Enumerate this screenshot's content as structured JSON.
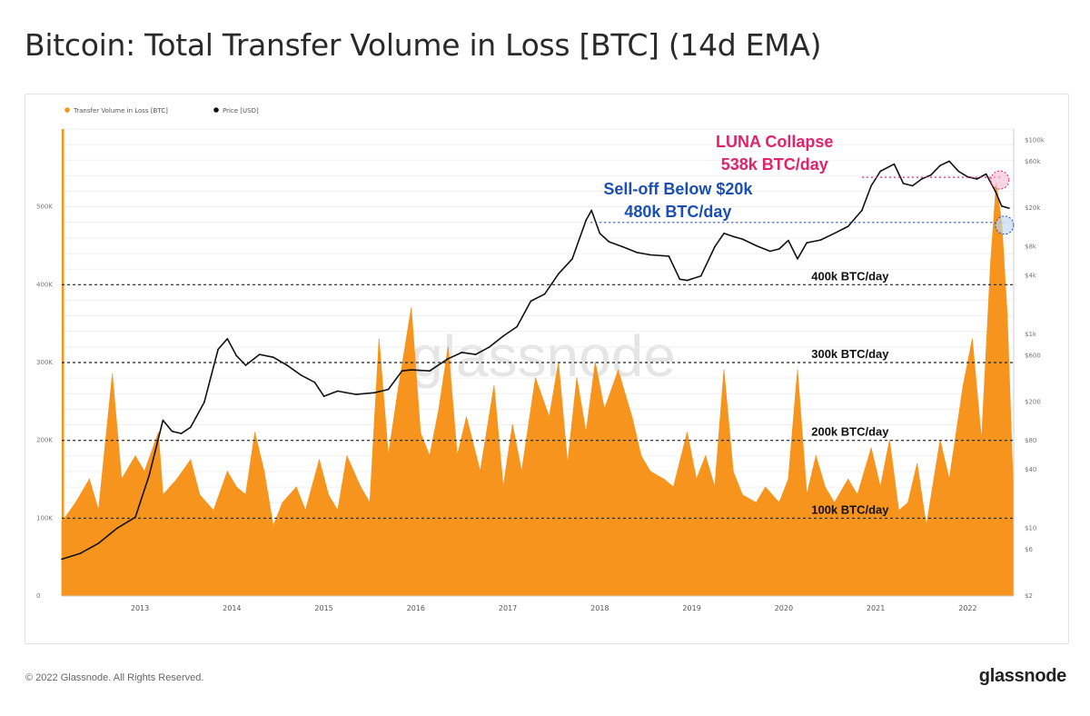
{
  "page": {
    "title": "Bitcoin: Total Transfer Volume in Loss [BTC] (14d EMA)",
    "copyright": "© 2022 Glassnode. All Rights Reserved.",
    "brand": "glassnode",
    "watermark": "glassnode"
  },
  "colors": {
    "volume": "#f7941d",
    "price": "#111111",
    "luna": "#e0236a",
    "selloff": "#1b4fb5",
    "reference_line": "#222222"
  },
  "chart_data": {
    "type": "area",
    "title": "Bitcoin: Total Transfer Volume in Loss [BTC] (14d EMA)",
    "grid": true,
    "legend_position": "top-left",
    "legend": [
      {
        "label": "Transfer Volume in Loss [BTC]",
        "color": "#f7941d"
      },
      {
        "label": "Price [USD]",
        "color": "#111111"
      }
    ],
    "x_ticks": [
      "2013",
      "2014",
      "2015",
      "2016",
      "2017",
      "2018",
      "2019",
      "2020",
      "2021",
      "2022"
    ],
    "xlim": [
      2012.2,
      2022.55
    ],
    "y_left": {
      "ylim": [
        0,
        600000
      ],
      "ticks": [
        0,
        100000,
        200000,
        300000,
        400000,
        500000
      ],
      "tick_labels": [
        "0",
        "100K",
        "200K",
        "300K",
        "400K",
        "500K"
      ]
    },
    "y_right": {
      "scale": "log",
      "ylim": [
        2,
        131000
      ],
      "ticks": [
        2,
        6,
        10,
        40,
        80,
        200,
        600,
        1000,
        4000,
        8000,
        20000,
        60000,
        100000
      ],
      "tick_labels": [
        "$2",
        "$6",
        "$10",
        "$40",
        "$80",
        "$200",
        "$600",
        "$1k",
        "$4k",
        "$8k",
        "$20k",
        "$60k",
        "$100k"
      ]
    },
    "reference_lines": [
      {
        "y": 100000,
        "label": "100k BTC/day"
      },
      {
        "y": 200000,
        "label": "200k BTC/day"
      },
      {
        "y": 300000,
        "label": "300k BTC/day"
      },
      {
        "y": 400000,
        "label": "400k BTC/day"
      }
    ],
    "annotations": [
      {
        "lines": [
          "LUNA Collapse",
          "538k BTC/day"
        ],
        "y": 538000,
        "x": 2022.4,
        "color": "#e0236a"
      },
      {
        "lines": [
          "Sell-off Below $20k",
          "480k BTC/day"
        ],
        "y": 480000,
        "x": 2022.45,
        "color": "#1b4fb5"
      }
    ],
    "series": [
      {
        "name": "Transfer Volume in Loss [BTC]",
        "axis": "left",
        "x": [
          2012.2,
          2012.35,
          2012.5,
          2012.6,
          2012.75,
          2012.85,
          2013.0,
          2013.1,
          2013.25,
          2013.3,
          2013.45,
          2013.6,
          2013.7,
          2013.85,
          2014.0,
          2014.1,
          2014.2,
          2014.3,
          2014.4,
          2014.5,
          2014.6,
          2014.75,
          2014.85,
          2015.0,
          2015.1,
          2015.2,
          2015.3,
          2015.45,
          2015.55,
          2015.65,
          2015.75,
          2015.85,
          2016.0,
          2016.1,
          2016.2,
          2016.3,
          2016.4,
          2016.5,
          2016.6,
          2016.75,
          2016.9,
          2017.0,
          2017.1,
          2017.2,
          2017.35,
          2017.5,
          2017.6,
          2017.7,
          2017.8,
          2017.9,
          2018.0,
          2018.1,
          2018.25,
          2018.4,
          2018.5,
          2018.6,
          2018.75,
          2018.85,
          2019.0,
          2019.1,
          2019.2,
          2019.3,
          2019.4,
          2019.5,
          2019.6,
          2019.75,
          2019.85,
          2020.0,
          2020.1,
          2020.2,
          2020.3,
          2020.4,
          2020.5,
          2020.6,
          2020.75,
          2020.85,
          2021.0,
          2021.1,
          2021.2,
          2021.3,
          2021.4,
          2021.5,
          2021.6,
          2021.75,
          2021.85,
          2022.0,
          2022.1,
          2022.2,
          2022.3,
          2022.36,
          2022.42,
          2022.48,
          2022.55
        ],
        "values": [
          95000,
          120000,
          150000,
          110000,
          285000,
          150000,
          180000,
          160000,
          210000,
          130000,
          150000,
          175000,
          130000,
          110000,
          160000,
          140000,
          130000,
          210000,
          160000,
          90000,
          120000,
          140000,
          110000,
          175000,
          130000,
          110000,
          180000,
          140000,
          120000,
          330000,
          180000,
          260000,
          370000,
          210000,
          180000,
          240000,
          320000,
          180000,
          230000,
          160000,
          270000,
          140000,
          220000,
          160000,
          280000,
          230000,
          300000,
          170000,
          280000,
          210000,
          300000,
          240000,
          290000,
          230000,
          180000,
          160000,
          150000,
          140000,
          210000,
          150000,
          180000,
          140000,
          290000,
          160000,
          130000,
          120000,
          140000,
          120000,
          150000,
          290000,
          130000,
          180000,
          140000,
          120000,
          150000,
          130000,
          190000,
          140000,
          200000,
          110000,
          120000,
          170000,
          90000,
          200000,
          150000,
          270000,
          330000,
          200000,
          430000,
          530000,
          480000,
          360000,
          120000
        ]
      },
      {
        "name": "Price [USD]",
        "axis": "right",
        "x": [
          2012.2,
          2012.4,
          2012.6,
          2012.8,
          2013.0,
          2013.15,
          2013.3,
          2013.4,
          2013.5,
          2013.6,
          2013.75,
          2013.9,
          2014.0,
          2014.1,
          2014.2,
          2014.35,
          2014.5,
          2014.65,
          2014.8,
          2014.95,
          2015.05,
          2015.2,
          2015.4,
          2015.6,
          2015.75,
          2015.9,
          2016.0,
          2016.2,
          2016.4,
          2016.55,
          2016.7,
          2016.85,
          2017.0,
          2017.15,
          2017.3,
          2017.45,
          2017.6,
          2017.75,
          2017.9,
          2017.96,
          2018.05,
          2018.15,
          2018.3,
          2018.45,
          2018.6,
          2018.8,
          2018.92,
          2019.0,
          2019.15,
          2019.3,
          2019.4,
          2019.5,
          2019.6,
          2019.75,
          2019.9,
          2020.0,
          2020.1,
          2020.2,
          2020.3,
          2020.45,
          2020.6,
          2020.75,
          2020.9,
          2021.0,
          2021.1,
          2021.25,
          2021.35,
          2021.45,
          2021.55,
          2021.65,
          2021.75,
          2021.85,
          2021.95,
          2022.05,
          2022.15,
          2022.25,
          2022.35,
          2022.42,
          2022.5
        ],
        "values": [
          4.8,
          5.5,
          7,
          10,
          13,
          35,
          130,
          100,
          95,
          110,
          200,
          700,
          900,
          600,
          480,
          620,
          580,
          480,
          380,
          320,
          230,
          260,
          240,
          250,
          270,
          420,
          430,
          420,
          560,
          650,
          620,
          740,
          960,
          1200,
          2200,
          2600,
          4200,
          6000,
          15000,
          19000,
          11000,
          9000,
          8000,
          7000,
          6600,
          6400,
          3700,
          3600,
          4000,
          8000,
          11000,
          10200,
          9600,
          8200,
          7200,
          7600,
          9300,
          6000,
          8800,
          9400,
          11000,
          13000,
          19000,
          34000,
          48000,
          57000,
          36000,
          34000,
          40000,
          44000,
          55000,
          61000,
          48000,
          42000,
          40000,
          45000,
          30000,
          21000,
          20000
        ]
      }
    ]
  }
}
